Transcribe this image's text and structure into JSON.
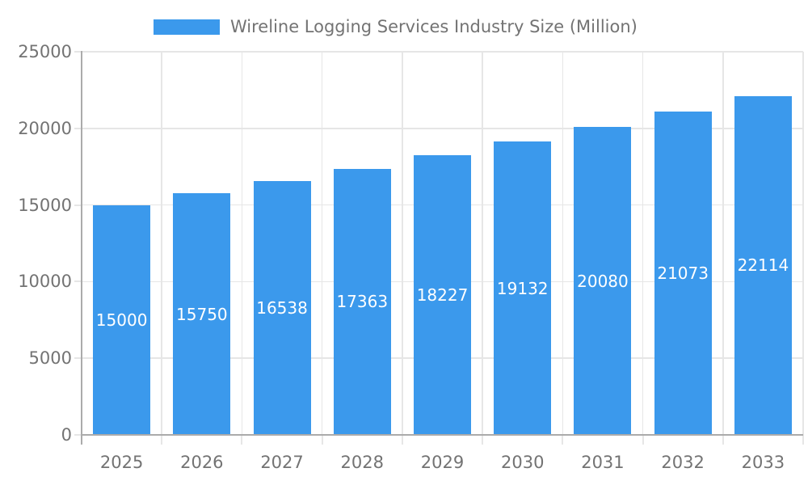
{
  "legend": {
    "label": "Wireline Logging Services Industry Size (Million)"
  },
  "chart_data": {
    "type": "bar",
    "title": "Wireline Logging Services Industry Size (Million)",
    "categories": [
      "2025",
      "2026",
      "2027",
      "2028",
      "2029",
      "2030",
      "2031",
      "2032",
      "2033"
    ],
    "values": [
      15000,
      15750,
      16538,
      17363,
      18227,
      19132,
      20080,
      21073,
      22114
    ],
    "value_labels": [
      "15000",
      "15750",
      "16538",
      "17363",
      "18227",
      "19132",
      "20080",
      "21073",
      "22114"
    ],
    "xlabel": "",
    "ylabel": "",
    "ylim": [
      0,
      25000
    ],
    "yticks": [
      0,
      5000,
      10000,
      15000,
      20000,
      25000
    ],
    "ytick_labels": [
      "0",
      "5000",
      "10000",
      "15000",
      "20000",
      "25000"
    ],
    "grid": true,
    "legend_position": "top",
    "colors": {
      "bar": "#3B99EC",
      "gridline": "#E6E6E6",
      "axis_line": "#ABABAB",
      "axis_text": "#737373",
      "value_label": "#FFFFFF"
    }
  }
}
